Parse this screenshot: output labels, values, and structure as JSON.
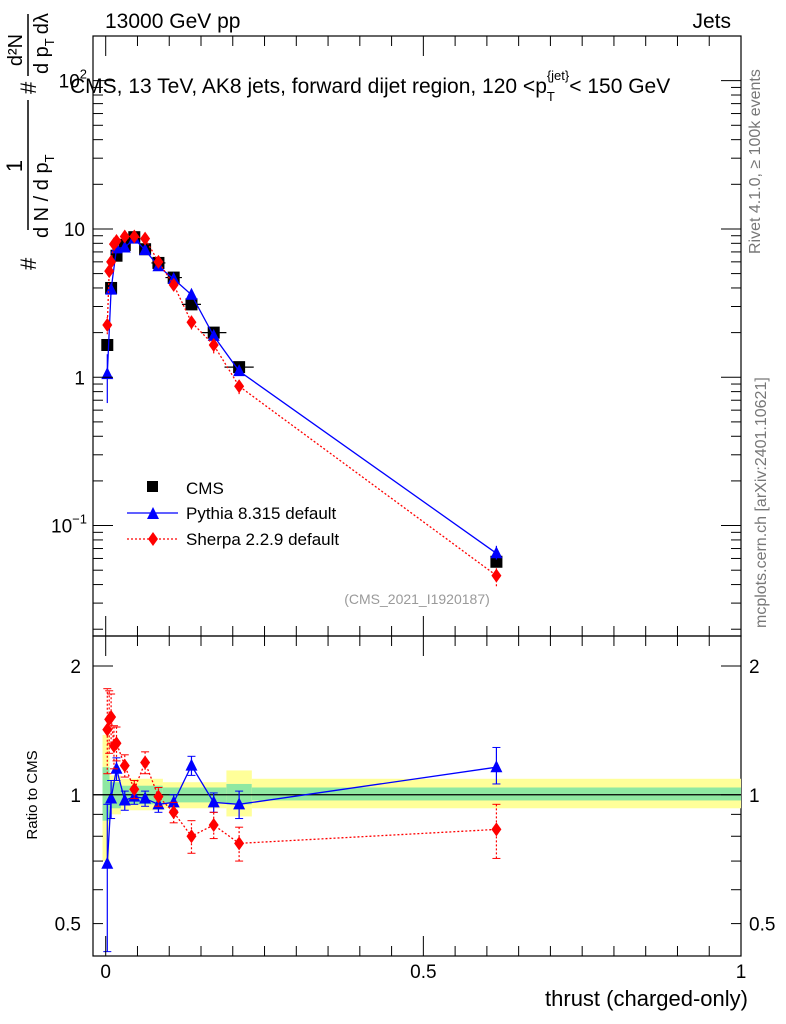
{
  "header": {
    "left": "13000 GeV pp",
    "right": "Jets"
  },
  "side_labels": {
    "rivet": "Rivet 4.1.0, ≥ 100k events",
    "mcplots": "mcplots.cern.ch [arXiv:2401.10621]"
  },
  "chart_data": [
    {
      "type": "scatter",
      "panel": "main",
      "title": "CMS, 13 TeV, AK8 jets, forward dijet region, 120 <p_T^{jet}< 150 GeV",
      "title_parts": {
        "main": "CMS, 13 TeV, AK8 jets, forward dijet region, 120 <p",
        "sub": "T",
        "sup": "{jet}",
        "tail": "< 150 GeV"
      },
      "ylabel_parts": {
        "hash": "#",
        "one": "1",
        "denominator": "d N / d p",
        "den_sub": "T",
        "hash2": "#",
        "d2N": "d²N",
        "dpt": "d p",
        "dpt_sub": "T",
        "dlambda": "dλ"
      },
      "yscale": "log",
      "ylim": [
        0.018,
        200
      ],
      "xlim": [
        -0.02,
        1.0
      ],
      "y_tick_labels": [
        {
          "value": 100,
          "label": "10",
          "sup": "2"
        },
        {
          "value": 10,
          "label": "10",
          "sup": ""
        },
        {
          "value": 1,
          "label": "1",
          "sup": ""
        },
        {
          "value": 0.1,
          "label": "10",
          "sup": "−1"
        }
      ],
      "watermark": "(CMS_2021_I1920187)",
      "legend": {
        "position": "bottom-left",
        "entries": [
          "CMS",
          "Pythia 8.315 default",
          "Sherpa 2.2.9 default"
        ]
      },
      "series": [
        {
          "name": "CMS",
          "color": "#000000",
          "marker": "square",
          "line": "none",
          "x": [
            0.0025,
            0.0085,
            0.017,
            0.03,
            0.045,
            0.062,
            0.083,
            0.107,
            0.135,
            0.17,
            0.21,
            0.615
          ],
          "y": [
            1.65,
            4.0,
            6.6,
            7.8,
            8.8,
            7.3,
            5.9,
            4.7,
            3.1,
            2.0,
            1.17,
            0.057
          ],
          "xerr": [
            0.0025,
            0.0035,
            0.005,
            0.007,
            0.008,
            0.009,
            0.011,
            0.013,
            0.015,
            0.02,
            0.023,
            0.38
          ]
        },
        {
          "name": "Pythia 8.315 default",
          "color": "#0000ff",
          "marker": "triangle",
          "line": "solid",
          "x": [
            0.0025,
            0.0085,
            0.017,
            0.03,
            0.045,
            0.062,
            0.083,
            0.107,
            0.135,
            0.17,
            0.21,
            0.615
          ],
          "y": [
            1.05,
            3.9,
            7.4,
            7.5,
            8.6,
            7.2,
            5.6,
            4.6,
            3.6,
            1.9,
            1.1,
            0.065
          ],
          "yerr_lo": [
            0.38,
            0.3,
            0.3,
            0.3,
            0.3,
            0.25,
            0.2,
            0.15,
            0.15,
            0.1,
            0.07,
            0.006
          ],
          "yerr_hi": [
            0.38,
            0.3,
            0.3,
            0.3,
            0.3,
            0.25,
            0.2,
            0.15,
            0.15,
            0.1,
            0.07,
            0.008
          ]
        },
        {
          "name": "Sherpa 2.2.9 default",
          "color": "#ff0000",
          "marker": "diamond",
          "line": "dotted",
          "x": [
            0.0025,
            0.0055,
            0.0085,
            0.013,
            0.017,
            0.03,
            0.045,
            0.062,
            0.083,
            0.107,
            0.135,
            0.17,
            0.21,
            0.615
          ],
          "y": [
            2.25,
            5.2,
            6.0,
            7.9,
            8.3,
            8.9,
            8.9,
            8.6,
            6.0,
            4.2,
            2.35,
            1.65,
            0.87,
            0.046
          ],
          "yerr_lo": [
            0.3,
            0.3,
            0.3,
            0.3,
            0.3,
            0.3,
            0.3,
            0.3,
            0.25,
            0.2,
            0.25,
            0.2,
            0.1,
            0.007
          ],
          "yerr_hi": [
            0.3,
            0.3,
            0.3,
            0.3,
            0.3,
            0.3,
            0.3,
            0.3,
            0.25,
            0.2,
            0.25,
            0.2,
            0.1,
            0.007
          ]
        }
      ]
    },
    {
      "type": "scatter",
      "panel": "ratio",
      "xlabel": "thrust (charged-only)",
      "ylabel": "Ratio to CMS",
      "yscale": "log",
      "ylim": [
        0.42,
        2.35
      ],
      "xlim": [
        -0.02,
        1.0
      ],
      "x_tick_labels": [
        {
          "value": 0,
          "label": "0"
        },
        {
          "value": 0.5,
          "label": "0.5"
        },
        {
          "value": 1,
          "label": "1"
        }
      ],
      "y_tick_labels": [
        {
          "value": 2,
          "label": "2"
        },
        {
          "value": 1,
          "label": "1"
        },
        {
          "value": 0.5,
          "label": "0.5"
        }
      ],
      "bands": [
        {
          "x0": -0.005,
          "x1": 0.006,
          "inner": [
            0.87,
            1.16
          ],
          "outer": [
            0.7,
            1.38
          ]
        },
        {
          "x0": 0.006,
          "x1": 0.024,
          "inner": [
            0.93,
            1.07
          ],
          "outer": [
            0.9,
            1.11
          ]
        },
        {
          "x0": 0.024,
          "x1": 0.09,
          "inner": [
            0.95,
            1.05
          ],
          "outer": [
            0.92,
            1.09
          ]
        },
        {
          "x0": 0.09,
          "x1": 0.19,
          "inner": [
            0.96,
            1.04
          ],
          "outer": [
            0.93,
            1.07
          ]
        },
        {
          "x0": 0.19,
          "x1": 0.23,
          "inner": [
            0.95,
            1.06
          ],
          "outer": [
            0.89,
            1.14
          ]
        },
        {
          "x0": 0.23,
          "x1": 1.0,
          "inner": [
            0.97,
            1.04
          ],
          "outer": [
            0.93,
            1.09
          ]
        }
      ],
      "series": [
        {
          "name": "Pythia 8.315 default",
          "color": "#0000ff",
          "marker": "triangle",
          "line": "solid",
          "x": [
            0.0025,
            0.0085,
            0.017,
            0.03,
            0.045,
            0.062,
            0.083,
            0.107,
            0.135,
            0.17,
            0.21,
            0.615
          ],
          "y": [
            0.69,
            0.98,
            1.15,
            0.97,
            0.99,
            0.98,
            0.95,
            0.96,
            1.17,
            0.96,
            0.95,
            1.16
          ],
          "yerr_lo": [
            0.26,
            0.1,
            0.07,
            0.05,
            0.04,
            0.04,
            0.04,
            0.04,
            0.06,
            0.05,
            0.07,
            0.1
          ],
          "yerr_hi": [
            0.26,
            0.1,
            0.07,
            0.05,
            0.04,
            0.04,
            0.04,
            0.04,
            0.06,
            0.05,
            0.07,
            0.13
          ]
        },
        {
          "name": "Sherpa 2.2.9 default",
          "color": "#ff0000",
          "marker": "diamond",
          "line": "dotted",
          "x": [
            0.0025,
            0.0055,
            0.0085,
            0.013,
            0.017,
            0.03,
            0.045,
            0.062,
            0.083,
            0.107,
            0.135,
            0.17,
            0.21,
            0.615
          ],
          "y": [
            1.42,
            1.5,
            1.52,
            1.3,
            1.32,
            1.17,
            1.03,
            1.19,
            0.99,
            0.91,
            0.8,
            0.85,
            0.77,
            0.83
          ],
          "yerr_lo": [
            0.3,
            0.25,
            0.2,
            0.15,
            0.12,
            0.07,
            0.05,
            0.07,
            0.05,
            0.05,
            0.07,
            0.06,
            0.07,
            0.12
          ],
          "yerr_hi": [
            0.35,
            0.25,
            0.2,
            0.15,
            0.12,
            0.07,
            0.05,
            0.07,
            0.05,
            0.05,
            0.07,
            0.06,
            0.07,
            0.12
          ]
        }
      ]
    }
  ]
}
